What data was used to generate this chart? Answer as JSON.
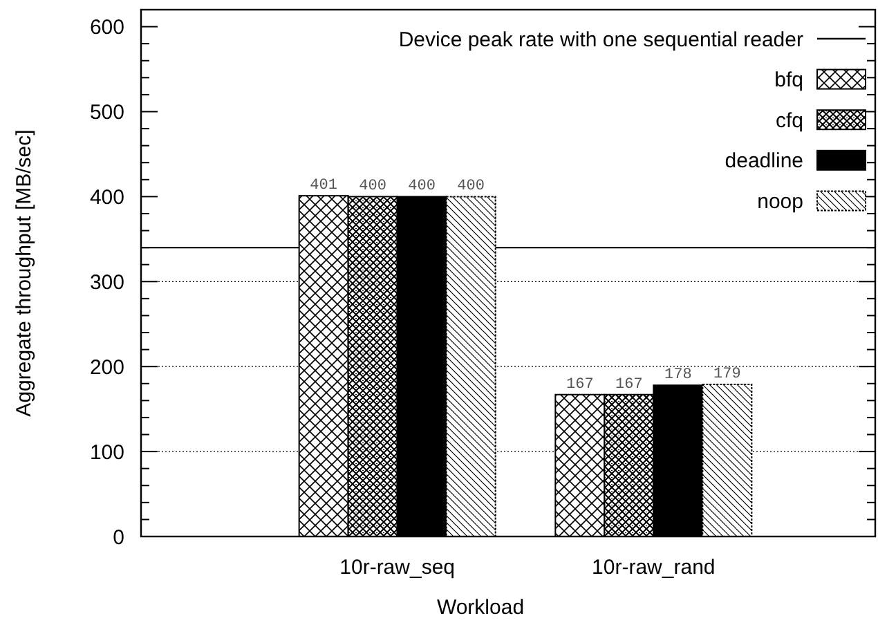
{
  "chart_data": {
    "type": "bar",
    "xlabel": "Workload",
    "ylabel": "Aggregate throughput [MB/sec]",
    "categories": [
      "10r-raw_seq",
      "10r-raw_rand"
    ],
    "series": [
      {
        "name": "bfq",
        "color": "#000000",
        "values": [
          401,
          167
        ]
      },
      {
        "name": "cfq",
        "color": "#000000",
        "values": [
          400,
          167
        ]
      },
      {
        "name": "deadline",
        "color": "#000000",
        "values": [
          400,
          178
        ]
      },
      {
        "name": "noop",
        "color": "#000000",
        "values": [
          400,
          179
        ]
      }
    ],
    "ylim": [
      0,
      620
    ],
    "yticks": [
      0,
      {
        "value": 20,
        "label": null
      },
      {
        "value": 40,
        "label": null
      },
      {
        "value": 60,
        "label": null
      },
      {
        "value": 80,
        "label": null
      },
      100,
      {
        "value": 120,
        "label": null
      },
      {
        "value": 140,
        "label": null
      },
      {
        "value": 160,
        "label": null
      },
      {
        "value": 180,
        "label": null
      },
      200,
      {
        "value": 220,
        "label": null
      },
      {
        "value": 240,
        "label": null
      },
      {
        "value": 260,
        "label": null
      },
      {
        "value": 280,
        "label": null
      },
      300,
      {
        "value": 320,
        "label": null
      },
      {
        "value": 340,
        "label": null
      },
      {
        "value": 360,
        "label": null
      },
      {
        "value": 380,
        "label": null
      },
      400,
      {
        "value": 420,
        "label": null
      },
      {
        "value": 440,
        "label": null
      },
      {
        "value": 460,
        "label": null
      },
      {
        "value": 480,
        "label": null
      },
      500,
      {
        "value": 520,
        "label": null
      },
      {
        "value": 540,
        "label": null
      },
      {
        "value": 560,
        "label": null
      },
      {
        "value": 580,
        "label": null
      },
      600
    ],
    "grid": "y",
    "ref_lines": [
      {
        "axis": "y",
        "value": 340,
        "label": "Device peak rate with one sequential reader",
        "color": "#000000",
        "line_style": "solid"
      }
    ],
    "data_labels": true,
    "legend": "top right"
  }
}
